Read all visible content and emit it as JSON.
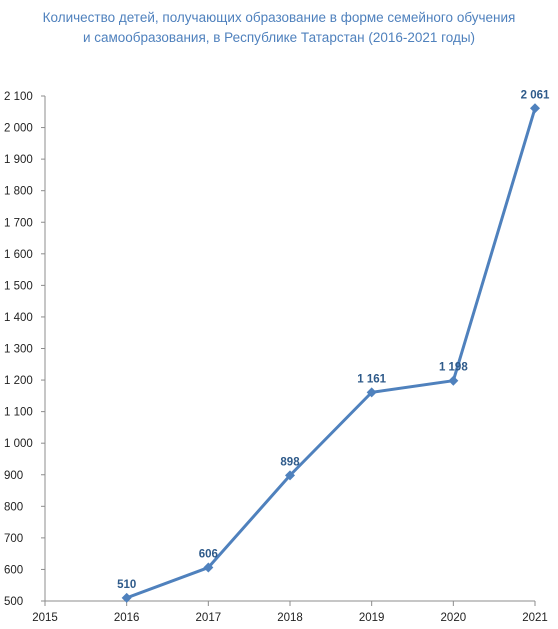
{
  "chart_data": {
    "type": "line",
    "title_lines": [
      "Количество детей, получающих образование в форме семейного обучения",
      "и самообразования, в Республике Татарстан (2016-2021 годы)"
    ],
    "x": [
      2016,
      2017,
      2018,
      2019,
      2020,
      2021
    ],
    "x_ticks": [
      "2015",
      "2016",
      "2017",
      "2018",
      "2019",
      "2020",
      "2021"
    ],
    "xlim": [
      2015,
      2021
    ],
    "series": [
      {
        "values": [
          510,
          606,
          898,
          1161,
          1198,
          2061
        ],
        "data_labels": [
          "510",
          "606",
          "898",
          "1 161",
          "1 198",
          "2 061"
        ],
        "color": "#4f81bd",
        "marker": "diamond"
      }
    ],
    "y_ticks": [
      "500",
      "600",
      "700",
      "800",
      "900",
      "1 000",
      "1 100",
      "1 200",
      "1 300",
      "1 400",
      "1 500",
      "1 600",
      "1 700",
      "1 800",
      "1 900",
      "2 000",
      "2 100"
    ],
    "ylim": [
      500,
      2100
    ],
    "grid": false
  }
}
